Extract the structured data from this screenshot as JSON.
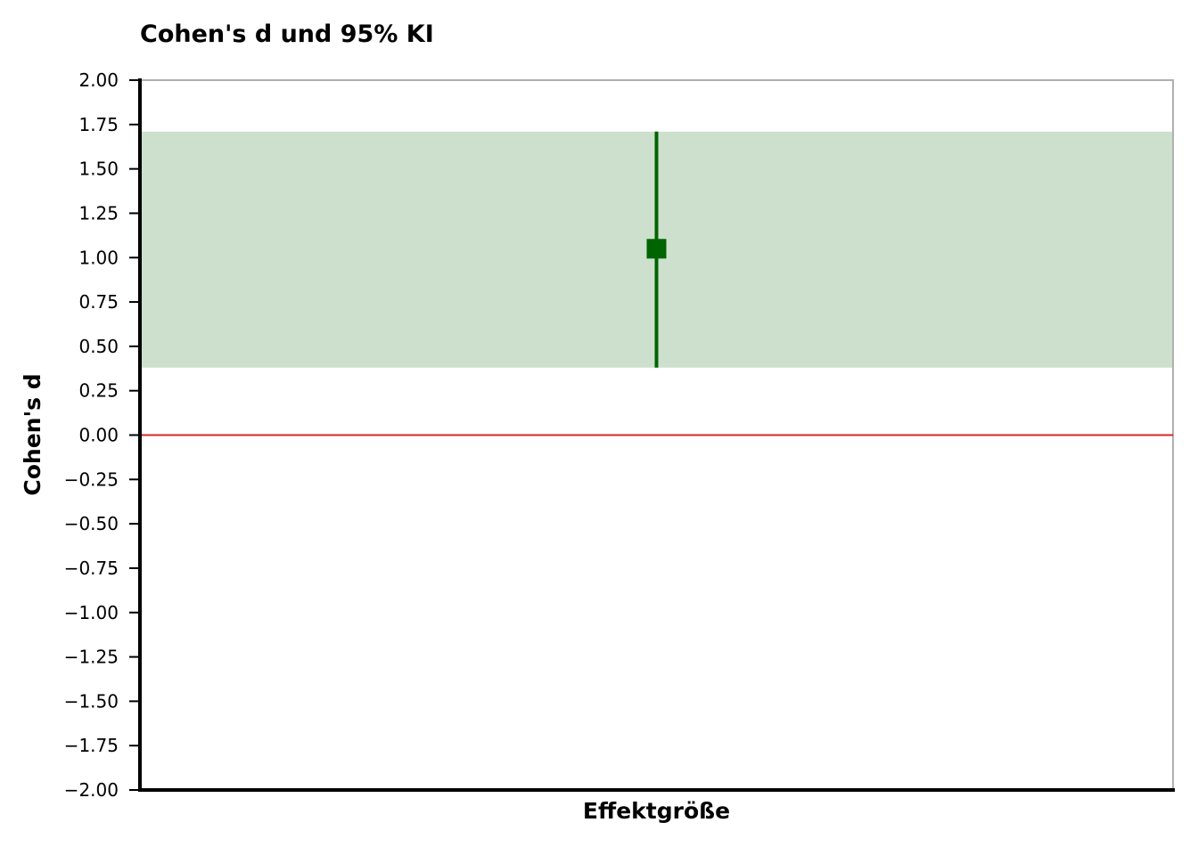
{
  "chart_data": {
    "type": "scatter",
    "title": "Cohen's d und 95% KI",
    "xlabel": "Effektgröße",
    "ylabel": "Cohen's d",
    "ylim": [
      -2.0,
      2.0
    ],
    "yticks": [
      "−2.00",
      "−1.75",
      "−1.50",
      "−1.25",
      "−1.00",
      "−0.75",
      "−0.50",
      "−0.25",
      "0.00",
      "0.25",
      "0.50",
      "0.75",
      "1.00",
      "1.25",
      "1.50",
      "1.75",
      "2.00"
    ],
    "ytick_values": [
      -2.0,
      -1.75,
      -1.5,
      -1.25,
      -1.0,
      -0.75,
      -0.5,
      -0.25,
      0.0,
      0.25,
      0.5,
      0.75,
      1.0,
      1.25,
      1.5,
      1.75,
      2.0
    ],
    "point": {
      "estimate": 1.05,
      "ci_lower": 0.38,
      "ci_upper": 1.71
    },
    "reference_line": 0.0,
    "grid": false,
    "colors": {
      "point": "#006400",
      "ci_band": "#cde0cd",
      "reference": "#d62728",
      "frame": "#b0b0b0"
    }
  }
}
